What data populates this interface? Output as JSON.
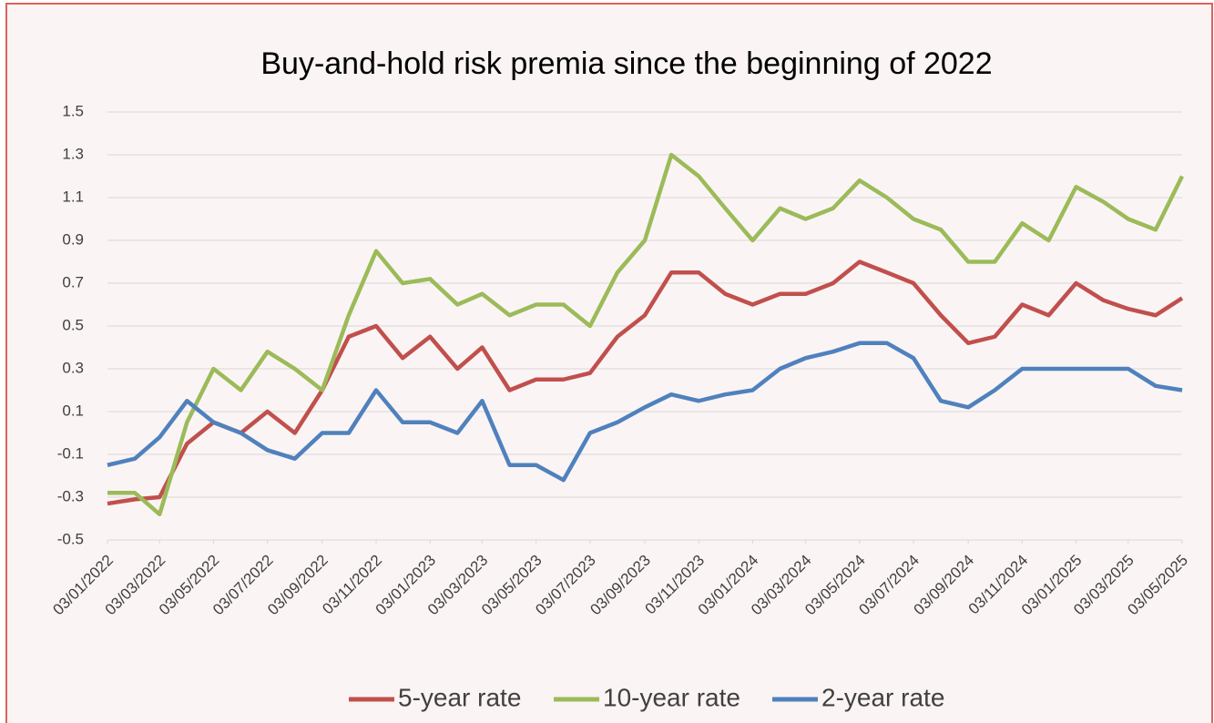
{
  "chart_data": {
    "type": "line",
    "title": "Buy-and-hold risk premia since the beginning of 2022",
    "x": [
      "2022-01-03",
      "2022-02-03",
      "2022-03-03",
      "2022-04-03",
      "2022-05-03",
      "2022-06-03",
      "2022-07-03",
      "2022-08-03",
      "2022-09-03",
      "2022-10-03",
      "2022-11-03",
      "2022-12-03",
      "2023-01-03",
      "2023-02-03",
      "2023-03-03",
      "2023-04-03",
      "2023-05-03",
      "2023-06-03",
      "2023-07-03",
      "2023-08-03",
      "2023-09-03",
      "2023-10-03",
      "2023-11-03",
      "2023-12-03",
      "2024-01-03",
      "2024-02-03",
      "2024-03-03",
      "2024-04-03",
      "2024-05-03",
      "2024-06-03",
      "2024-07-03",
      "2024-08-03",
      "2024-09-03",
      "2024-10-03",
      "2024-11-03",
      "2024-12-03",
      "2025-01-03",
      "2025-02-03",
      "2025-03-03",
      "2025-04-03",
      "2025-05-03"
    ],
    "series": [
      {
        "name": "5-year rate",
        "color": "#c0504d",
        "values": [
          -0.33,
          -0.31,
          -0.3,
          -0.05,
          0.05,
          0.0,
          0.1,
          0.0,
          0.2,
          0.45,
          0.5,
          0.35,
          0.45,
          0.3,
          0.4,
          0.2,
          0.25,
          0.25,
          0.28,
          0.45,
          0.55,
          0.75,
          0.75,
          0.65,
          0.6,
          0.65,
          0.65,
          0.7,
          0.8,
          0.75,
          0.7,
          0.55,
          0.42,
          0.45,
          0.6,
          0.55,
          0.7,
          0.62,
          0.58,
          0.55,
          0.63
        ]
      },
      {
        "name": "10-year rate",
        "color": "#9bbb59",
        "values": [
          -0.28,
          -0.28,
          -0.38,
          0.05,
          0.3,
          0.2,
          0.38,
          0.3,
          0.2,
          0.55,
          0.85,
          0.7,
          0.72,
          0.6,
          0.65,
          0.55,
          0.6,
          0.6,
          0.5,
          0.75,
          0.9,
          1.3,
          1.2,
          1.05,
          0.9,
          1.05,
          1.0,
          1.05,
          1.18,
          1.1,
          1.0,
          0.95,
          0.8,
          0.8,
          0.98,
          0.9,
          1.15,
          1.08,
          1.0,
          0.95,
          1.2
        ]
      },
      {
        "name": "2-year rate",
        "color": "#4f81bd",
        "values": [
          -0.15,
          -0.12,
          -0.02,
          0.15,
          0.05,
          0.0,
          -0.08,
          -0.12,
          0.0,
          0.0,
          0.2,
          0.05,
          0.05,
          0.0,
          0.15,
          -0.15,
          -0.15,
          -0.22,
          0.0,
          0.05,
          0.12,
          0.18,
          0.15,
          0.18,
          0.2,
          0.3,
          0.35,
          0.38,
          0.42,
          0.42,
          0.35,
          0.15,
          0.12,
          0.2,
          0.3,
          0.3,
          0.3,
          0.3,
          0.3,
          0.22,
          0.2
        ]
      }
    ],
    "xlim": [
      "2022-01-03",
      "2025-05-03"
    ],
    "xticks": [
      {
        "value": "2022-01-03",
        "label": "03/01/2022"
      },
      {
        "value": "2022-03-03",
        "label": "03/03/2022"
      },
      {
        "value": "2022-05-03",
        "label": "03/05/2022"
      },
      {
        "value": "2022-07-03",
        "label": "03/07/2022"
      },
      {
        "value": "2022-09-03",
        "label": "03/09/2022"
      },
      {
        "value": "2022-11-03",
        "label": "03/11/2022"
      },
      {
        "value": "2023-01-03",
        "label": "03/01/2023"
      },
      {
        "value": "2023-03-03",
        "label": "03/03/2023"
      },
      {
        "value": "2023-05-03",
        "label": "03/05/2023"
      },
      {
        "value": "2023-07-03",
        "label": "03/07/2023"
      },
      {
        "value": "2023-09-03",
        "label": "03/09/2023"
      },
      {
        "value": "2023-11-03",
        "label": "03/11/2023"
      },
      {
        "value": "2024-01-03",
        "label": "03/01/2024"
      },
      {
        "value": "2024-03-03",
        "label": "03/03/2024"
      },
      {
        "value": "2024-05-03",
        "label": "03/05/2024"
      },
      {
        "value": "2024-07-03",
        "label": "03/07/2024"
      },
      {
        "value": "2024-09-03",
        "label": "03/09/2024"
      },
      {
        "value": "2024-11-03",
        "label": "03/11/2024"
      },
      {
        "value": "2025-01-03",
        "label": "03/01/2025"
      },
      {
        "value": "2025-03-03",
        "label": "03/03/2025"
      },
      {
        "value": "2025-05-03",
        "label": "03/05/2025"
      }
    ],
    "ylim": [
      -0.5,
      1.5
    ],
    "yticks": [
      -0.5,
      -0.3,
      -0.1,
      0.1,
      0.3,
      0.5,
      0.7,
      0.9,
      1.1,
      1.3,
      1.5
    ],
    "grid": true,
    "legend": "bottom"
  }
}
